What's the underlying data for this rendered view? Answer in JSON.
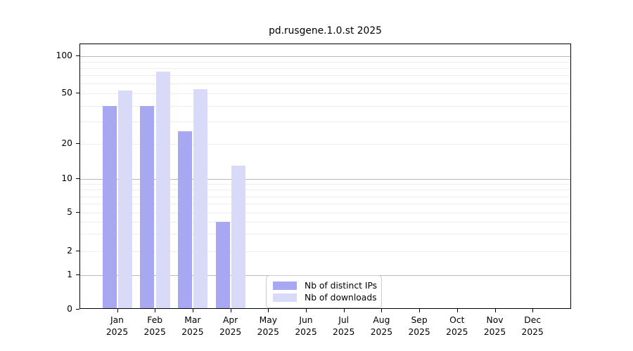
{
  "window": {
    "background": "#ffffff"
  },
  "chart_data": {
    "type": "bar",
    "title": "pd.rusgene.1.0.st 2025",
    "xlabel": "",
    "ylabel": "",
    "categories": [
      "Jan",
      "Feb",
      "Mar",
      "Apr",
      "May",
      "Jun",
      "Jul",
      "Aug",
      "Sep",
      "Oct",
      "Nov",
      "Dec"
    ],
    "x_tick_year": "2025",
    "series": [
      {
        "name": "Nb of distinct IPs",
        "color": "#a8a8f2",
        "values": [
          40,
          40,
          25,
          4,
          0,
          0,
          0,
          0,
          0,
          0,
          0,
          0
        ]
      },
      {
        "name": "Nb of downloads",
        "color": "#d9d9f8",
        "values": [
          53,
          75,
          54,
          13,
          0,
          0,
          0,
          0,
          0,
          0,
          0,
          0
        ]
      }
    ],
    "yticks": [
      0,
      1,
      2,
      5,
      10,
      20,
      50,
      100
    ],
    "ylim": [
      0,
      130
    ],
    "y_scale": {
      "type": "custom-piecewise-log",
      "note": "value-to-pixel anchors measured on 500px-tall image",
      "anchors": [
        [
          0,
          440
        ],
        [
          1,
          391
        ],
        [
          2,
          356.5
        ],
        [
          5,
          302
        ],
        [
          10,
          254
        ],
        [
          20,
          204
        ],
        [
          50,
          132
        ],
        [
          100,
          79
        ]
      ]
    },
    "grid": {
      "orientation": "horizontal",
      "minor_values": [
        2,
        3,
        4,
        5,
        6,
        7,
        8,
        9,
        20,
        30,
        40,
        50,
        60,
        70,
        80,
        90
      ],
      "major_values": [
        1,
        10,
        100
      ],
      "minor_color": "#ededed",
      "major_color": "#b9b9b9"
    },
    "legend": {
      "position": "inside-bottom-center",
      "entries": [
        "Nb of distinct IPs",
        "Nb of downloads"
      ]
    },
    "colors": {
      "axis": "#000000",
      "text": "#000000",
      "bar_distinct_ips": "#a8a8f2",
      "bar_downloads": "#d9d9f8"
    }
  }
}
